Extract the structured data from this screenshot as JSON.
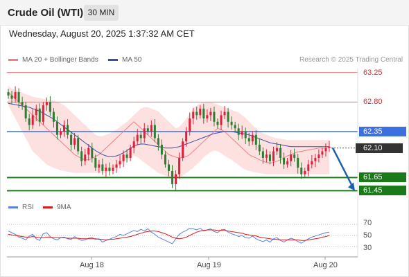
{
  "header": {
    "instrument": "Crude Oil (WTI)",
    "timeframe": "30 MIN"
  },
  "datetime": "Wednesday, August 20, 2025 1:37:32 AM CET",
  "legend": {
    "ma20_label": "MA 20 + Bollinger Bands",
    "ma50_label": "MA 50",
    "rsi_label": "RSI",
    "ma9_label": "9MA",
    "copyright": "Research © 2025 Trading Central"
  },
  "colors": {
    "bullish": "#e0203a",
    "bearish": "#2e7d32",
    "ma20": "#f08080",
    "ma50": "#3a4ea0",
    "bollinger_fill": "#fde0e0",
    "resistance": "#f07070",
    "pivot": "#3d6fe0",
    "support": "#1a7a1a",
    "current_price": "#333333",
    "arrow": "#1f5fa8",
    "rsi": "#5b7fe0",
    "rsi_ma9": "#d81b1b"
  },
  "price_levels": [
    {
      "value": "63.25",
      "type": "resistance",
      "style": "text"
    },
    {
      "value": "62.80",
      "type": "resistance",
      "style": "text"
    },
    {
      "value": "62.35",
      "type": "pivot",
      "style": "boxed"
    },
    {
      "value": "62.10",
      "type": "current",
      "style": "boxed"
    },
    {
      "value": "61.65",
      "type": "support",
      "style": "boxed"
    },
    {
      "value": "61.45",
      "type": "support",
      "style": "boxed"
    }
  ],
  "rsi_ticks": [
    "70",
    "50",
    "30"
  ],
  "x_labels": [
    "Aug 18",
    "Aug 19",
    "Aug 20"
  ],
  "chart_data": {
    "type": "candlestick",
    "title": "Crude Oil (WTI)",
    "timeframe": "30 MIN",
    "ylim": [
      61.38,
      63.32
    ],
    "candles_close": [
      62.9,
      62.85,
      62.95,
      62.8,
      62.75,
      62.55,
      62.45,
      62.6,
      62.7,
      62.5,
      62.75,
      62.8,
      62.65,
      62.5,
      62.3,
      62.35,
      62.45,
      62.3,
      62.15,
      62.25,
      62.05,
      61.9,
      62.0,
      62.1,
      61.95,
      61.8,
      61.85,
      61.75,
      61.8,
      61.75,
      61.8,
      61.85,
      61.9,
      62.0,
      61.95,
      62.1,
      62.2,
      62.3,
      62.25,
      62.4,
      62.35,
      62.45,
      62.25,
      62.15,
      62.0,
      61.85,
      61.75,
      61.55,
      61.7,
      61.95,
      62.2,
      62.35,
      62.55,
      62.65,
      62.6,
      62.7,
      62.55,
      62.6,
      62.65,
      62.5,
      62.45,
      62.6,
      62.65,
      62.5,
      62.45,
      62.4,
      62.3,
      62.35,
      62.25,
      62.2,
      62.3,
      62.15,
      62.05,
      61.95,
      62.0,
      61.9,
      62.05,
      62.1,
      61.95,
      61.85,
      61.9,
      62.0,
      61.95,
      61.8,
      61.7,
      61.75,
      61.85,
      61.9,
      61.95,
      62.0,
      62.05,
      62.1,
      62.12
    ],
    "ma20": [
      62.95,
      62.9,
      62.85,
      62.8,
      62.75,
      62.7,
      62.65,
      62.6,
      62.55,
      62.5,
      62.45,
      62.4,
      62.35,
      62.3,
      62.25,
      62.2,
      62.15,
      62.1,
      62.05,
      62.0,
      61.97,
      61.94,
      61.92,
      61.92,
      61.94,
      61.97,
      62.0,
      62.05,
      62.1,
      62.15,
      62.2,
      62.25,
      62.3,
      62.35,
      62.4,
      62.45,
      62.5,
      62.45,
      62.4,
      62.35,
      62.3,
      62.25,
      62.2,
      62.15,
      62.1,
      62.05,
      62.0,
      61.98,
      61.96,
      61.95,
      61.95,
      61.97,
      62.0,
      62.05,
      62.1,
      62.15,
      62.2,
      62.25,
      62.3,
      62.35,
      62.4,
      62.38,
      62.35,
      62.3,
      62.25,
      62.2,
      62.15,
      62.1,
      62.05,
      62.0,
      61.97,
      61.95,
      61.92,
      61.9,
      61.88,
      61.87,
      61.88,
      61.9,
      61.92,
      61.95,
      61.98,
      62.0,
      62.02,
      62.04,
      62.05,
      62.06,
      62.07,
      62.08,
      62.09,
      62.1,
      62.1,
      62.1,
      62.1
    ],
    "bb_upper": [
      63.05,
      63.0,
      62.98,
      62.96,
      62.94,
      62.92,
      62.9,
      62.88,
      62.87,
      62.86,
      62.85,
      62.84,
      62.83,
      62.82,
      62.8,
      62.78,
      62.75,
      62.7,
      62.65,
      62.6,
      62.55,
      62.5,
      62.45,
      62.4,
      62.35,
      62.3,
      62.28,
      62.28,
      62.3,
      62.32,
      62.35,
      62.38,
      62.42,
      62.46,
      62.5,
      62.55,
      62.6,
      62.65,
      62.7,
      62.72,
      62.72,
      62.7,
      62.68,
      62.66,
      62.6,
      62.55,
      62.5,
      62.45,
      62.4,
      62.42,
      62.48,
      62.55,
      62.62,
      62.7,
      62.75,
      62.78,
      62.8,
      62.8,
      62.8,
      62.78,
      62.76,
      62.74,
      62.72,
      62.7,
      62.68,
      62.66,
      62.64,
      62.6,
      62.56,
      62.5,
      62.45,
      62.4,
      62.35,
      62.32,
      62.3,
      62.28,
      62.26,
      62.25,
      62.24,
      62.23,
      62.22,
      62.22,
      62.22,
      62.22,
      62.22,
      62.22,
      62.22,
      62.22,
      62.22,
      62.22,
      62.22,
      62.22,
      62.22
    ],
    "bb_lower": [
      62.75,
      62.65,
      62.55,
      62.45,
      62.35,
      62.25,
      62.15,
      62.05,
      62.0,
      61.95,
      61.9,
      61.85,
      61.82,
      61.8,
      61.78,
      61.76,
      61.75,
      61.74,
      61.73,
      61.72,
      61.72,
      61.72,
      61.72,
      61.72,
      61.72,
      61.72,
      61.72,
      61.72,
      61.73,
      61.75,
      61.78,
      61.8,
      61.84,
      61.88,
      61.92,
      61.95,
      61.98,
      61.96,
      61.92,
      61.88,
      61.84,
      61.8,
      61.76,
      61.72,
      61.7,
      61.68,
      61.66,
      61.65,
      61.65,
      61.66,
      61.68,
      61.72,
      61.76,
      61.8,
      61.85,
      61.9,
      61.96,
      62.0,
      62.04,
      62.06,
      62.05,
      62.02,
      61.98,
      61.95,
      61.92,
      61.88,
      61.84,
      61.8,
      61.77,
      61.75,
      61.74,
      61.73,
      61.72,
      61.71,
      61.7,
      61.7,
      61.7,
      61.7,
      61.7,
      61.7,
      61.7,
      61.7,
      61.7,
      61.7,
      61.7,
      61.7,
      61.7,
      61.7,
      61.7,
      61.7,
      61.7,
      61.7,
      61.7
    ],
    "ma50": [
      62.78,
      62.77,
      62.76,
      62.75,
      62.74,
      62.73,
      62.72,
      62.7,
      62.68,
      62.66,
      62.63,
      62.6,
      62.57,
      62.54,
      62.5,
      62.46,
      62.42,
      62.38,
      62.34,
      62.3,
      62.26,
      62.22,
      62.18,
      62.14,
      62.1,
      62.06,
      62.03,
      62.0,
      61.98,
      61.97,
      61.97,
      61.98,
      62.0,
      62.03,
      62.06,
      62.1,
      62.13,
      62.15,
      62.16,
      62.16,
      62.15,
      62.14,
      62.13,
      62.12,
      62.11,
      62.1,
      62.1,
      62.1,
      62.11,
      62.12,
      62.14,
      62.16,
      62.18,
      62.2,
      62.22,
      62.24,
      62.26,
      62.28,
      62.3,
      62.32,
      62.33,
      62.34,
      62.35,
      62.35,
      62.35,
      62.34,
      62.33,
      62.32,
      62.31,
      62.3,
      62.28,
      62.26,
      62.24,
      62.22,
      62.2,
      62.18,
      62.17,
      62.16,
      62.15,
      62.14,
      62.13,
      62.12,
      62.12,
      62.12,
      62.12,
      62.12,
      62.12,
      62.12,
      62.12,
      62.12,
      62.12,
      62.12,
      62.12
    ],
    "rsi_ylim": [
      20,
      80
    ],
    "rsi": [
      58,
      55,
      52,
      47,
      45,
      42,
      49,
      52,
      44,
      41,
      53,
      55,
      48,
      44,
      42,
      46,
      47,
      44,
      43,
      48,
      44,
      41,
      42,
      45,
      46,
      43,
      44,
      38,
      41,
      43,
      46,
      48,
      52,
      50,
      53,
      56,
      59,
      57,
      61,
      58,
      62,
      56,
      52,
      47,
      44,
      41,
      38,
      35,
      44,
      52,
      56,
      59,
      63,
      62,
      60,
      63,
      58,
      60,
      62,
      57,
      55,
      60,
      61,
      56,
      53,
      51,
      48,
      50,
      46,
      45,
      49,
      44,
      41,
      39,
      42,
      38,
      44,
      46,
      41,
      38,
      42,
      45,
      43,
      39,
      36,
      40,
      44,
      47,
      49,
      51,
      53,
      55,
      56
    ],
    "rsi_ma9": [
      52,
      51,
      50,
      49,
      48,
      47,
      47,
      48,
      47,
      46,
      46,
      47,
      47,
      46,
      46,
      46,
      46,
      45,
      45,
      45,
      45,
      44,
      44,
      44,
      44,
      44,
      43,
      43,
      42,
      43,
      43,
      44,
      45,
      46,
      47,
      48,
      50,
      52,
      54,
      56,
      57,
      58,
      58,
      57,
      55,
      53,
      50,
      47,
      45,
      44,
      45,
      47,
      50,
      53,
      56,
      58,
      59,
      60,
      60,
      60,
      59,
      59,
      59,
      58,
      57,
      56,
      55,
      54,
      52,
      51,
      50,
      49,
      47,
      46,
      45,
      44,
      43,
      43,
      42,
      42,
      42,
      42,
      42,
      42,
      41,
      41,
      42,
      43,
      44,
      45,
      47,
      48,
      50
    ],
    "projection": {
      "from": 62.1,
      "to": 61.45
    }
  }
}
